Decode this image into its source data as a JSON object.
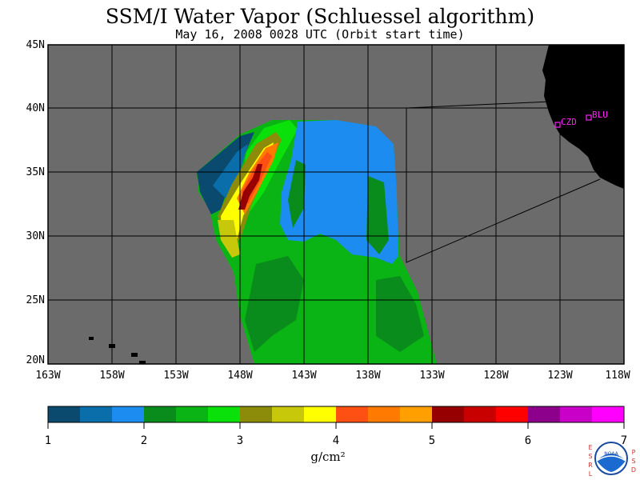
{
  "header": {
    "title": "SSM/I Water Vapor (Schluessel algorithm)",
    "subtitle": "May 16, 2008  0028 UTC  (Orbit start time)"
  },
  "map": {
    "lat_labels": [
      "45N",
      "40N",
      "35N",
      "30N",
      "25N",
      "20N"
    ],
    "lon_labels": [
      "163W",
      "158W",
      "153W",
      "148W",
      "143W",
      "138W",
      "133W",
      "128W",
      "123W",
      "118W"
    ],
    "lat_range": [
      20,
      45
    ],
    "lon_range": [
      -163,
      -118
    ],
    "background_color": "#6b6b6b",
    "land_color": "#000000",
    "stations": [
      {
        "code": "CZD",
        "lat": 38.6,
        "lon": -123.2
      },
      {
        "code": "BLU",
        "lat": 39.3,
        "lon": -120.7
      }
    ]
  },
  "colorbar": {
    "ticks": [
      "1",
      "2",
      "3",
      "4",
      "5",
      "6",
      "7"
    ],
    "units": "g/cm²",
    "colors": [
      "#0a4a6e",
      "#0a6eaa",
      "#1c8cf0",
      "#0a8c1c",
      "#0ab414",
      "#0ae00a",
      "#8c8c0a",
      "#c8c80a",
      "#ffff00",
      "#ff5014",
      "#ff7a00",
      "#ffa000",
      "#960000",
      "#c80000",
      "#ff0000",
      "#8c008c",
      "#c800c8",
      "#ff00ff"
    ]
  },
  "logo": {
    "left_letters": "ESRL",
    "right_letters": "PSD",
    "badge_text": "NOAA"
  }
}
